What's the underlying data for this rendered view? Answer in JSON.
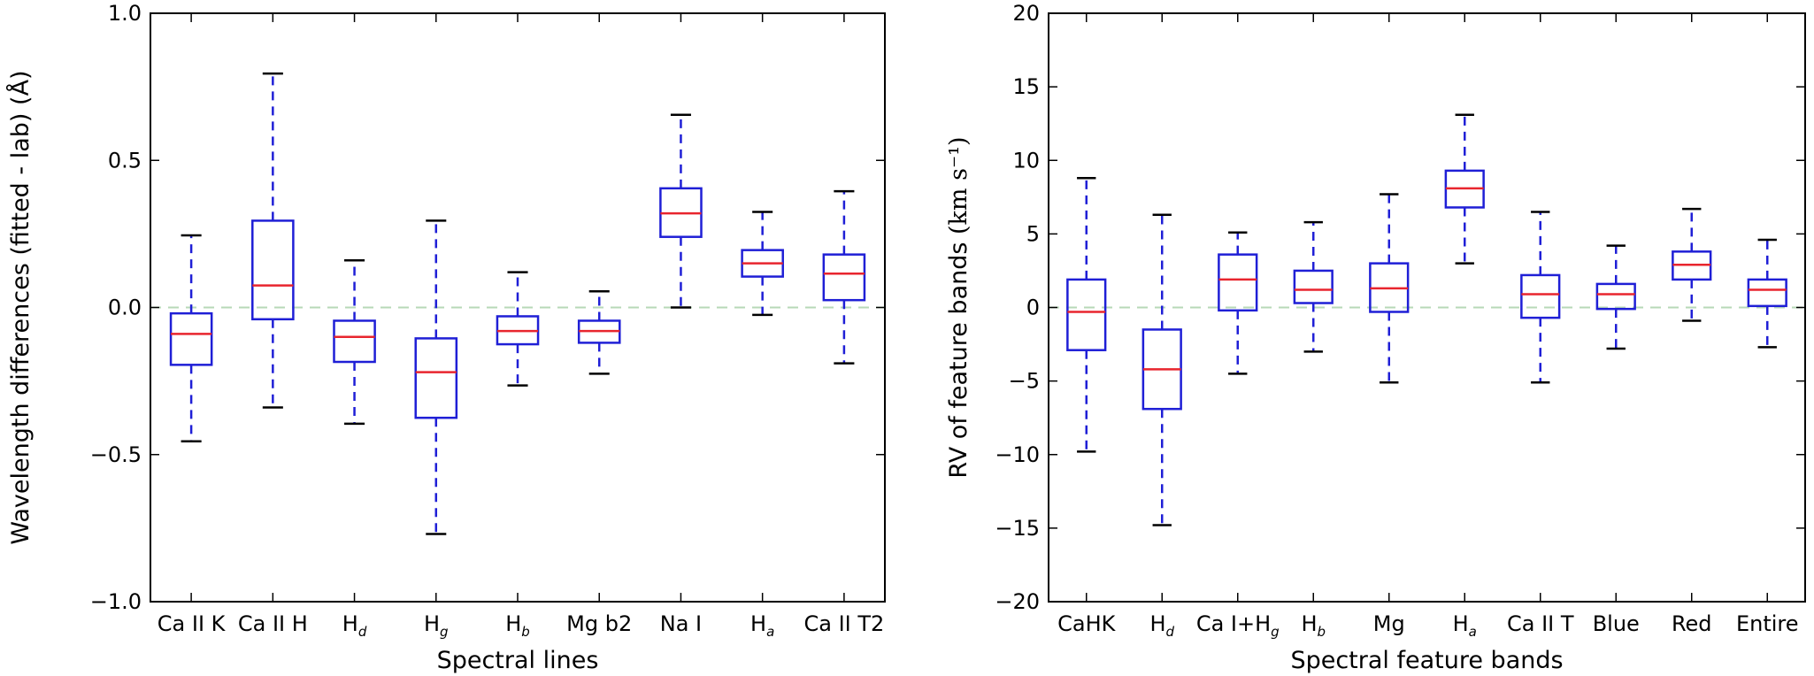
{
  "colors": {
    "box": "#1f1fd6",
    "median": "#e8252e",
    "whisker": "#1f1fd6",
    "cap": "#000000",
    "zero_line": "#b7d8b7",
    "frame": "#000000"
  },
  "chart_data": [
    {
      "type": "box",
      "title": "",
      "xlabel": "Spectral lines",
      "ylabel": "Wavelength differences (fitted - lab) (Å)",
      "ylim": [
        -1.0,
        1.0
      ],
      "yticks": [
        -1.0,
        -0.5,
        0.0,
        0.5,
        1.0
      ],
      "ytick_labels": [
        "−1.0",
        "−0.5",
        "0.0",
        "0.5",
        "1.0"
      ],
      "reference_line": 0.0,
      "categories": [
        {
          "main": "Ca II K",
          "sub": ""
        },
        {
          "main": "Ca II H",
          "sub": ""
        },
        {
          "main": "H",
          "sub": "d"
        },
        {
          "main": "H",
          "sub": "g"
        },
        {
          "main": "H",
          "sub": "b"
        },
        {
          "main": "Mg b2",
          "sub": ""
        },
        {
          "main": "Na I",
          "sub": ""
        },
        {
          "main": "H",
          "sub": "a"
        },
        {
          "main": "Ca II T2",
          "sub": ""
        }
      ],
      "boxes": [
        {
          "whislo": -0.455,
          "q1": -0.195,
          "med": -0.09,
          "q3": -0.02,
          "whishi": 0.245
        },
        {
          "whislo": -0.34,
          "q1": -0.04,
          "med": 0.075,
          "q3": 0.295,
          "whishi": 0.795
        },
        {
          "whislo": -0.395,
          "q1": -0.185,
          "med": -0.1,
          "q3": -0.045,
          "whishi": 0.16
        },
        {
          "whislo": -0.77,
          "q1": -0.375,
          "med": -0.22,
          "q3": -0.105,
          "whishi": 0.295
        },
        {
          "whislo": -0.265,
          "q1": -0.125,
          "med": -0.08,
          "q3": -0.03,
          "whishi": 0.12
        },
        {
          "whislo": -0.225,
          "q1": -0.12,
          "med": -0.08,
          "q3": -0.045,
          "whishi": 0.055
        },
        {
          "whislo": 0.0,
          "q1": 0.24,
          "med": 0.32,
          "q3": 0.405,
          "whishi": 0.655
        },
        {
          "whislo": -0.025,
          "q1": 0.105,
          "med": 0.15,
          "q3": 0.195,
          "whishi": 0.325
        },
        {
          "whislo": -0.19,
          "q1": 0.025,
          "med": 0.115,
          "q3": 0.18,
          "whishi": 0.395
        }
      ]
    },
    {
      "type": "box",
      "title": "",
      "xlabel": "Spectral feature bands",
      "ylabel": "RV of feature bands",
      "ylabel_unit": "(km s⁻¹)",
      "ylim": [
        -20,
        20
      ],
      "yticks": [
        -20,
        -15,
        -10,
        -5,
        0,
        5,
        10,
        15,
        20
      ],
      "ytick_labels": [
        "−20",
        "−15",
        "−10",
        "−5",
        "0",
        "5",
        "10",
        "15",
        "20"
      ],
      "reference_line": 0,
      "categories": [
        {
          "main": "CaHK",
          "sub": ""
        },
        {
          "main": "H",
          "sub": "d"
        },
        {
          "main": "Ca I+H",
          "sub": "g"
        },
        {
          "main": "H",
          "sub": "b"
        },
        {
          "main": "Mg",
          "sub": ""
        },
        {
          "main": "H",
          "sub": "a"
        },
        {
          "main": "Ca II T",
          "sub": ""
        },
        {
          "main": "Blue",
          "sub": ""
        },
        {
          "main": "Red",
          "sub": ""
        },
        {
          "main": "Entire",
          "sub": ""
        }
      ],
      "boxes": [
        {
          "whislo": -9.8,
          "q1": -2.9,
          "med": -0.3,
          "q3": 1.9,
          "whishi": 8.8
        },
        {
          "whislo": -14.8,
          "q1": -6.9,
          "med": -4.2,
          "q3": -1.5,
          "whishi": 6.3
        },
        {
          "whislo": -4.5,
          "q1": -0.2,
          "med": 1.9,
          "q3": 3.6,
          "whishi": 5.1
        },
        {
          "whislo": -3.0,
          "q1": 0.3,
          "med": 1.2,
          "q3": 2.5,
          "whishi": 5.8
        },
        {
          "whislo": -5.1,
          "q1": -0.3,
          "med": 1.3,
          "q3": 3.0,
          "whishi": 7.7
        },
        {
          "whislo": 3.0,
          "q1": 6.8,
          "med": 8.1,
          "q3": 9.3,
          "whishi": 13.1
        },
        {
          "whislo": -5.1,
          "q1": -0.7,
          "med": 0.9,
          "q3": 2.2,
          "whishi": 6.5
        },
        {
          "whislo": -2.8,
          "q1": -0.1,
          "med": 0.9,
          "q3": 1.6,
          "whishi": 4.2
        },
        {
          "whislo": -0.9,
          "q1": 1.9,
          "med": 2.9,
          "q3": 3.8,
          "whishi": 6.7
        },
        {
          "whislo": -2.7,
          "q1": 0.1,
          "med": 1.2,
          "q3": 1.9,
          "whishi": 4.6
        }
      ]
    }
  ]
}
